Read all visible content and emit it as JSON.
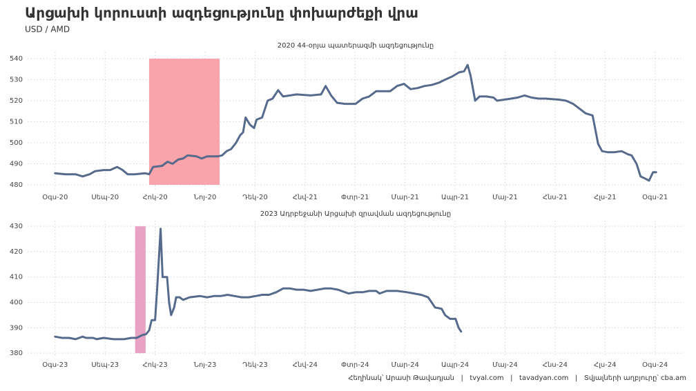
{
  "title": "Արցախի կորուստի ազդեցությունը փոխարժեքի վրա",
  "subtitle": "USD / AMD",
  "caption": "Հեղինակ՝ Արասի Թավադյան   |   tvyal.com   |   tavadyan.com   |   Տվյալների աղբյուրը՝ cba.am",
  "chart_data": [
    {
      "type": "line",
      "title": "2020 44-օրյա պատերազմի ազդեցությունը",
      "color": "#566a8c",
      "grid": true,
      "highlight": {
        "xlim": [
          1.88,
          3.29
        ],
        "color": "#f9a3ab"
      },
      "xlim": [
        -0.55,
        12.57
      ],
      "ylim": [
        477.7,
        543.3
      ],
      "yticks": [
        480,
        490,
        500,
        510,
        520,
        530,
        540
      ],
      "xticks": [
        {
          "value": 0,
          "label": "Օգս-20"
        },
        {
          "value": 1,
          "label": "Սեպ-20"
        },
        {
          "value": 2,
          "label": "Հոկ-20"
        },
        {
          "value": 3,
          "label": "Նոյ-20"
        },
        {
          "value": 4,
          "label": "Դեկ-20"
        },
        {
          "value": 5,
          "label": "Հնվ-21"
        },
        {
          "value": 6,
          "label": "Փտր-21"
        },
        {
          "value": 7,
          "label": "Մար-21"
        },
        {
          "value": 8,
          "label": "Ապր-21"
        },
        {
          "value": 9,
          "label": "Մայ-21"
        },
        {
          "value": 10,
          "label": "Հնս-21"
        },
        {
          "value": 11,
          "label": "Հլս-21"
        },
        {
          "value": 12,
          "label": "Օգս-21"
        }
      ],
      "x": [
        0,
        0.21,
        0.41,
        0.55,
        0.69,
        0.8,
        0.97,
        1.1,
        1.24,
        1.35,
        1.45,
        1.59,
        1.8,
        1.88,
        1.96,
        2.14,
        2.25,
        2.35,
        2.46,
        2.56,
        2.65,
        2.83,
        2.93,
        3.04,
        3.25,
        3.34,
        3.43,
        3.52,
        3.62,
        3.7,
        3.76,
        3.81,
        3.9,
        3.98,
        4.03,
        4.14,
        4.25,
        4.35,
        4.46,
        4.56,
        4.7,
        4.83,
        5.11,
        5.32,
        5.41,
        5.52,
        5.64,
        5.8,
        6.01,
        6.15,
        6.28,
        6.42,
        6.56,
        6.7,
        6.84,
        6.98,
        7.11,
        7.25,
        7.39,
        7.53,
        7.67,
        7.8,
        7.94,
        8.08,
        8.18,
        8.25,
        8.31,
        8.4,
        8.49,
        8.63,
        8.77,
        8.84,
        8.98,
        9.12,
        9.25,
        9.39,
        9.53,
        9.67,
        9.81,
        10.08,
        10.22,
        10.36,
        10.5,
        10.61,
        10.75,
        10.8,
        10.86,
        10.94,
        11.05,
        11.19,
        11.33,
        11.46,
        11.53,
        11.63,
        11.71,
        11.8,
        11.88,
        11.96,
        12.02
      ],
      "values": [
        485.5,
        485,
        485,
        484,
        485,
        486.5,
        487,
        487,
        488.5,
        487,
        485,
        485,
        485.5,
        485,
        488.5,
        489,
        491,
        490,
        492,
        492.5,
        494,
        493.5,
        492.5,
        493.5,
        493.5,
        494,
        496,
        497,
        500,
        503.5,
        505,
        512,
        508.5,
        507,
        511,
        512,
        520,
        521,
        525,
        522,
        522.5,
        523,
        522.5,
        523,
        527,
        522.5,
        519,
        518.5,
        518.5,
        521,
        522,
        524.5,
        524.5,
        524.5,
        527,
        528,
        525.5,
        526,
        527,
        527.5,
        528.5,
        530,
        531.5,
        533.5,
        534,
        537,
        532,
        520,
        522,
        522,
        521.5,
        520,
        520.5,
        521,
        521.5,
        522.5,
        521.5,
        521,
        521,
        520.5,
        520,
        518.5,
        516,
        514,
        513,
        507,
        499.5,
        496,
        495.5,
        495.5,
        496,
        494.5,
        494,
        490,
        484,
        483,
        482,
        486,
        486
      ]
    },
    {
      "type": "line",
      "title": "2023 Ադրբեջանի Արցախի զրավման ազդեցությունը",
      "color": "#566a8c",
      "grid": true,
      "highlight": {
        "xlim": [
          1.6,
          1.81
        ],
        "color": "#e8a3c4"
      },
      "xlim": [
        -0.55,
        12.57
      ],
      "ylim": [
        378.4,
        432.2
      ],
      "yticks": [
        380,
        390,
        400,
        410,
        420,
        430
      ],
      "xticks": [
        {
          "value": 0,
          "label": "Օգս-23"
        },
        {
          "value": 1,
          "label": "Սեպ-23"
        },
        {
          "value": 2,
          "label": "Հոկ-23"
        },
        {
          "value": 3,
          "label": "Նոյ-23"
        },
        {
          "value": 4,
          "label": "Դեկ-23"
        },
        {
          "value": 5,
          "label": "Հնվ-24"
        },
        {
          "value": 6,
          "label": "Փտր-24"
        },
        {
          "value": 7,
          "label": "Մար-24"
        },
        {
          "value": 8,
          "label": "Ապր-24"
        },
        {
          "value": 9,
          "label": "Մայ-24"
        },
        {
          "value": 10,
          "label": "Հնս-24"
        },
        {
          "value": 11,
          "label": "Հլս-24"
        },
        {
          "value": 12,
          "label": "Օգս-24"
        }
      ],
      "x": [
        0,
        0.14,
        0.28,
        0.41,
        0.48,
        0.55,
        0.62,
        0.76,
        0.83,
        0.97,
        1.17,
        1.38,
        1.52,
        1.63,
        1.73,
        1.82,
        1.88,
        1.93,
        2.0,
        2.04,
        2.11,
        2.15,
        2.24,
        2.28,
        2.32,
        2.38,
        2.42,
        2.49,
        2.56,
        2.69,
        2.9,
        3.04,
        3.18,
        3.31,
        3.45,
        3.59,
        3.73,
        3.87,
        4.01,
        4.14,
        4.28,
        4.42,
        4.56,
        4.7,
        4.83,
        4.97,
        5.11,
        5.25,
        5.39,
        5.52,
        5.66,
        5.8,
        5.87,
        6.01,
        6.15,
        6.28,
        6.42,
        6.49,
        6.63,
        6.84,
        7.04,
        7.18,
        7.32,
        7.46,
        7.53,
        7.6,
        7.73,
        7.8,
        7.9,
        8.01,
        8.07,
        8.12
      ],
      "values": [
        386.5,
        386,
        386,
        385.5,
        386,
        386.5,
        386,
        386,
        385.5,
        386,
        385.5,
        385.5,
        386,
        386,
        387,
        387.5,
        389,
        393,
        393,
        405,
        429,
        410,
        410,
        400,
        395,
        398,
        402,
        402,
        401,
        402,
        402.5,
        402,
        402.5,
        402.5,
        403,
        402.5,
        402,
        402,
        402.5,
        403,
        403,
        404,
        405.5,
        405.5,
        405,
        405,
        404.5,
        405,
        405.5,
        405.5,
        405,
        404,
        403.5,
        404,
        404,
        404.5,
        404.5,
        403.5,
        404.5,
        404.5,
        404,
        403.5,
        403,
        402,
        400,
        398,
        397.5,
        395,
        393.5,
        393.5,
        390,
        388.5
      ]
    }
  ]
}
